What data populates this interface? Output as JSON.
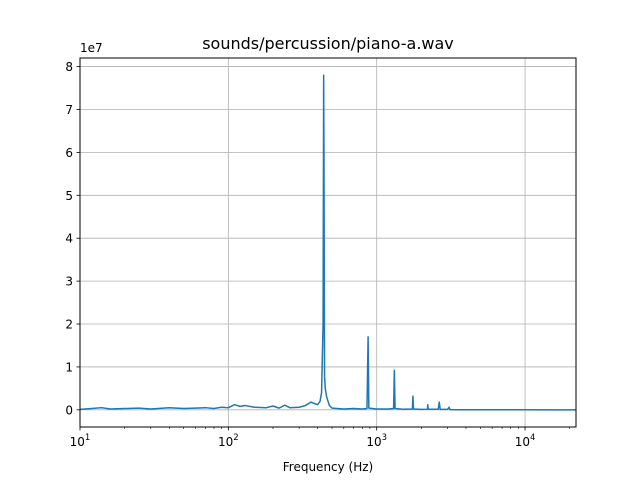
{
  "chart_data": {
    "type": "line",
    "title": "sounds/percussion/piano-a.wav",
    "xlabel": "Frequency (Hz)",
    "ylabel": "",
    "x_scale": "log",
    "xlim": [
      10,
      22050
    ],
    "ylim": [
      -4000000,
      82000000
    ],
    "y_multiplier_label": "1e7",
    "x_ticks": [
      {
        "value": 10,
        "base": "10",
        "exp": "1"
      },
      {
        "value": 100,
        "base": "10",
        "exp": "2"
      },
      {
        "value": 1000,
        "base": "10",
        "exp": "3"
      },
      {
        "value": 10000,
        "base": "10",
        "exp": "4"
      }
    ],
    "y_ticks": [
      {
        "value": 0,
        "label": "0"
      },
      {
        "value": 10000000,
        "label": "1"
      },
      {
        "value": 20000000,
        "label": "2"
      },
      {
        "value": 30000000,
        "label": "3"
      },
      {
        "value": 40000000,
        "label": "4"
      },
      {
        "value": 50000000,
        "label": "5"
      },
      {
        "value": 60000000,
        "label": "6"
      },
      {
        "value": 70000000,
        "label": "7"
      },
      {
        "value": 80000000,
        "label": "8"
      }
    ],
    "grid": true,
    "line_color": "#1f77b4",
    "series": [
      {
        "name": "",
        "points": [
          [
            10,
            100000
          ],
          [
            12,
            300000
          ],
          [
            14,
            500000
          ],
          [
            16,
            200000
          ],
          [
            20,
            300000
          ],
          [
            25,
            400000
          ],
          [
            30,
            200000
          ],
          [
            40,
            500000
          ],
          [
            50,
            300000
          ],
          [
            60,
            400000
          ],
          [
            70,
            500000
          ],
          [
            80,
            300000
          ],
          [
            90,
            600000
          ],
          [
            100,
            500000
          ],
          [
            110,
            1200000
          ],
          [
            120,
            800000
          ],
          [
            130,
            1000000
          ],
          [
            150,
            600000
          ],
          [
            180,
            500000
          ],
          [
            200,
            900000
          ],
          [
            220,
            400000
          ],
          [
            240,
            1100000
          ],
          [
            260,
            500000
          ],
          [
            300,
            600000
          ],
          [
            330,
            1000000
          ],
          [
            360,
            1800000
          ],
          [
            380,
            1500000
          ],
          [
            400,
            1200000
          ],
          [
            415,
            2000000
          ],
          [
            425,
            4000000
          ],
          [
            435,
            20000000
          ],
          [
            439,
            78000000
          ],
          [
            441,
            60000000
          ],
          [
            445,
            8000000
          ],
          [
            450,
            5000000
          ],
          [
            460,
            3000000
          ],
          [
            480,
            1000000
          ],
          [
            500,
            400000
          ],
          [
            600,
            200000
          ],
          [
            700,
            300000
          ],
          [
            800,
            200000
          ],
          [
            860,
            300000
          ],
          [
            875,
            17000000
          ],
          [
            885,
            400000
          ],
          [
            1000,
            200000
          ],
          [
            1200,
            200000
          ],
          [
            1300,
            300000
          ],
          [
            1315,
            9200000
          ],
          [
            1330,
            300000
          ],
          [
            1500,
            150000
          ],
          [
            1740,
            200000
          ],
          [
            1755,
            3200000
          ],
          [
            1770,
            200000
          ],
          [
            2000,
            100000
          ],
          [
            2200,
            150000
          ],
          [
            2210,
            1200000
          ],
          [
            2225,
            150000
          ],
          [
            2600,
            150000
          ],
          [
            2640,
            1800000
          ],
          [
            2680,
            100000
          ],
          [
            3000,
            100000
          ],
          [
            3080,
            600000
          ],
          [
            3120,
            50000
          ],
          [
            3500,
            20000
          ],
          [
            4000,
            20000
          ],
          [
            6000,
            10000
          ],
          [
            10000,
            10000
          ],
          [
            15000,
            0
          ],
          [
            22050,
            0
          ]
        ]
      }
    ]
  }
}
